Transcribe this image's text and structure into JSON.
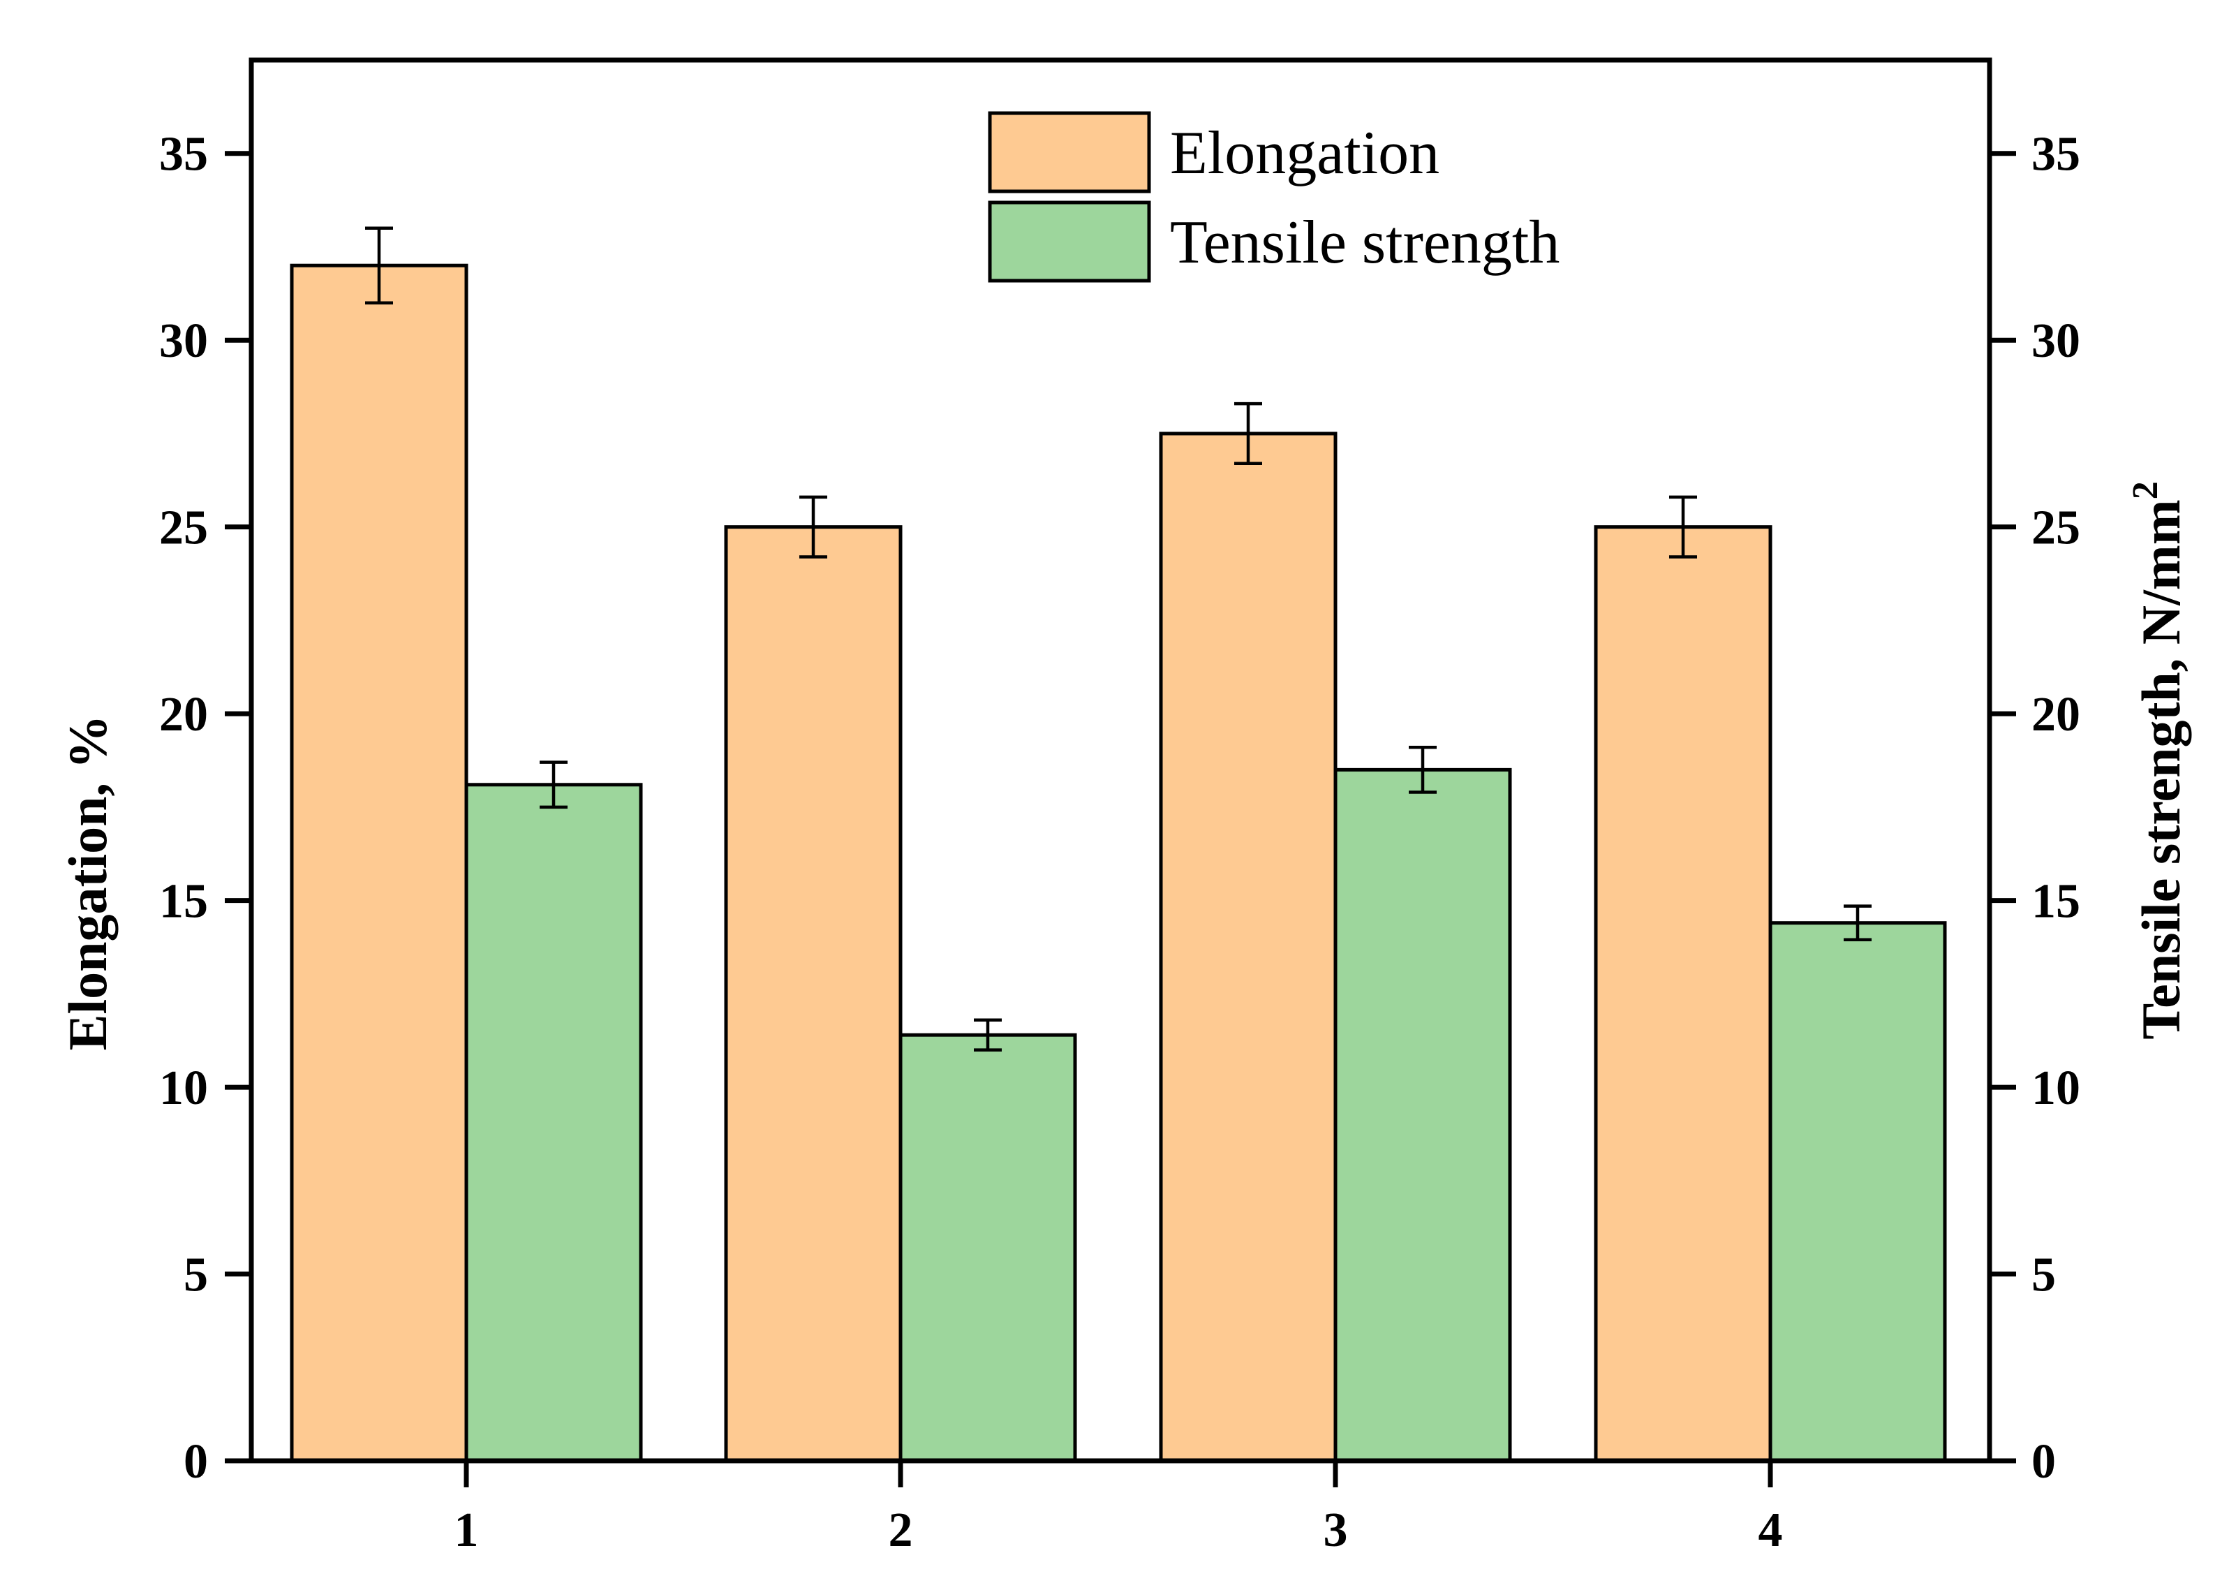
{
  "chart_data": {
    "type": "bar",
    "categories": [
      "1",
      "2",
      "3",
      "4"
    ],
    "series": [
      {
        "name": "Elongation",
        "axis": "left",
        "color": "#FECA92",
        "values": [
          32.0,
          25.0,
          27.5,
          25.0
        ],
        "errors": [
          1.0,
          0.8,
          0.8,
          0.8
        ]
      },
      {
        "name": "Tensile strength",
        "axis": "right",
        "color": "#9DD69C",
        "values": [
          18.1,
          11.4,
          18.5,
          14.4
        ],
        "errors": [
          0.6,
          0.4,
          0.6,
          0.45
        ]
      }
    ],
    "ylabel": "Elongation, %",
    "ylabel_right_text": "Tensile strength, N/mm",
    "ylabel_right_superscript": "2",
    "xlabel": "",
    "ylim": [
      0,
      37.5
    ],
    "ylim_right": [
      0,
      37.5
    ],
    "yticks": [
      "0",
      "5",
      "10",
      "15",
      "20",
      "25",
      "30",
      "35"
    ],
    "yticks_right": [
      "0",
      "5",
      "10",
      "15",
      "20",
      "25",
      "30",
      "35"
    ],
    "legend_position": "top-center",
    "grid": false
  }
}
